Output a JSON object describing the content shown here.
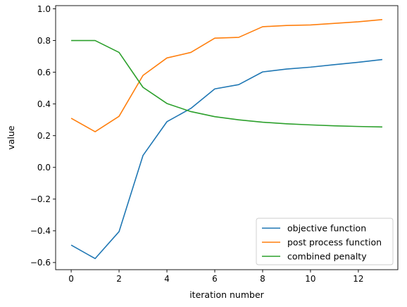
{
  "chart_data": {
    "type": "line",
    "title": "",
    "xlabel": "iteration number",
    "ylabel": "value",
    "x": [
      0,
      1,
      2,
      3,
      4,
      5,
      6,
      7,
      8,
      9,
      10,
      11,
      12,
      13
    ],
    "xlim": [
      -0.65,
      13.65
    ],
    "ylim": [
      -0.645,
      1.02
    ],
    "xticks": [
      0,
      2,
      4,
      6,
      8,
      10,
      12
    ],
    "xtick_labels": [
      "0",
      "2",
      "4",
      "6",
      "8",
      "10",
      "12"
    ],
    "yticks": [
      -0.6,
      -0.4,
      -0.2,
      0.0,
      0.2,
      0.4,
      0.6,
      0.8,
      1.0
    ],
    "ytick_labels": [
      "−0.6",
      "−0.4",
      "−0.2",
      "0.0",
      "0.2",
      "0.4",
      "0.6",
      "0.8",
      "1.0"
    ],
    "grid": false,
    "legend_position": "bottom-right",
    "series": [
      {
        "name": "objective function",
        "color": "#1f77b4",
        "values": [
          -0.49,
          -0.575,
          -0.405,
          0.075,
          0.288,
          0.372,
          0.495,
          0.522,
          0.602,
          0.62,
          0.632,
          0.648,
          0.663,
          0.68
        ]
      },
      {
        "name": "post process function",
        "color": "#ff7f0e",
        "values": [
          0.31,
          0.225,
          0.322,
          0.58,
          0.69,
          0.725,
          0.815,
          0.82,
          0.887,
          0.895,
          0.898,
          0.908,
          0.918,
          0.932
        ]
      },
      {
        "name": "combined penalty",
        "color": "#2ca02c",
        "values": [
          0.8,
          0.8,
          0.725,
          0.505,
          0.403,
          0.352,
          0.32,
          0.3,
          0.285,
          0.275,
          0.268,
          0.262,
          0.258,
          0.255
        ]
      }
    ]
  }
}
